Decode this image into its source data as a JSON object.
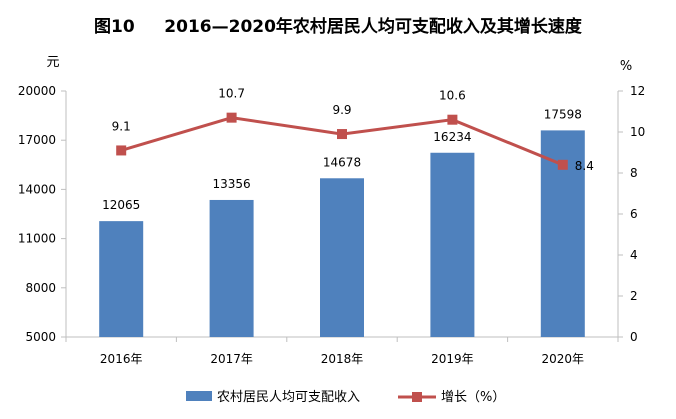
{
  "chart_data": {
    "type": "bar",
    "title": "图10     2016—2020年农村居民人均可支配收入及其增长速度",
    "categories": [
      "2016年",
      "2017年",
      "2018年",
      "2019年",
      "2020年"
    ],
    "y_left": {
      "unit": "元",
      "ylim": [
        5000,
        20000
      ],
      "ticks": [
        "5000",
        "8000",
        "11000",
        "14000",
        "17000",
        "20000"
      ]
    },
    "y_right": {
      "unit": "%",
      "ylim": [
        0,
        12
      ],
      "ticks": [
        "0",
        "2",
        "4",
        "6",
        "8",
        "10",
        "12"
      ]
    },
    "series": [
      {
        "name": "农村居民人均可支配收入",
        "type": "bar",
        "axis": "left",
        "color": "#4f81bd",
        "values": [
          12065,
          13356,
          14678,
          16234,
          17598
        ],
        "labels": [
          "12065",
          "13356",
          "14678",
          "16234",
          "17598"
        ]
      },
      {
        "name": "增长（%）",
        "type": "line",
        "axis": "right",
        "color": "#c0504d",
        "values": [
          9.1,
          10.7,
          9.9,
          10.6,
          8.4
        ],
        "labels": [
          "9.1",
          "10.7",
          "9.9",
          "10.6",
          "8.4"
        ]
      }
    ],
    "grid": false,
    "legend_position": "bottom"
  }
}
